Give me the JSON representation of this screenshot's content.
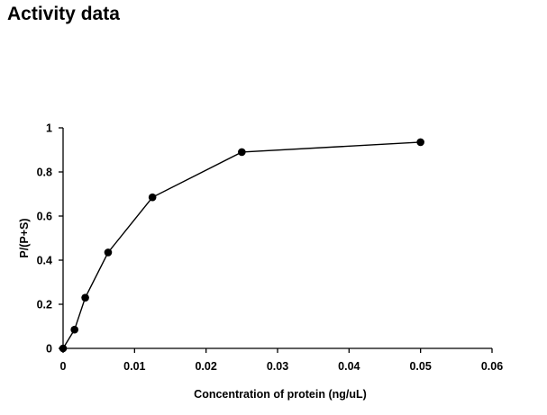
{
  "page": {
    "title": "Activity data"
  },
  "chart_data": {
    "type": "line",
    "title": "",
    "xlabel": "Concentration of protein (ng/uL)",
    "ylabel": "P/(P+S)",
    "xlim": [
      0,
      0.06
    ],
    "ylim": [
      0,
      1
    ],
    "x_ticks": [
      "0",
      "0.01",
      "0.02",
      "0.03",
      "0.04",
      "0.05",
      "0.06"
    ],
    "y_ticks": [
      "0",
      "0.2",
      "0.4",
      "0.6",
      "0.8",
      "1"
    ],
    "grid": false,
    "legend": "none",
    "series": [
      {
        "color": "#000000",
        "marker": "circle",
        "x": [
          0,
          0.0016,
          0.0031,
          0.0063,
          0.0125,
          0.025,
          0.05
        ],
        "y": [
          0.0,
          0.085,
          0.23,
          0.435,
          0.685,
          0.89,
          0.935
        ]
      }
    ]
  }
}
